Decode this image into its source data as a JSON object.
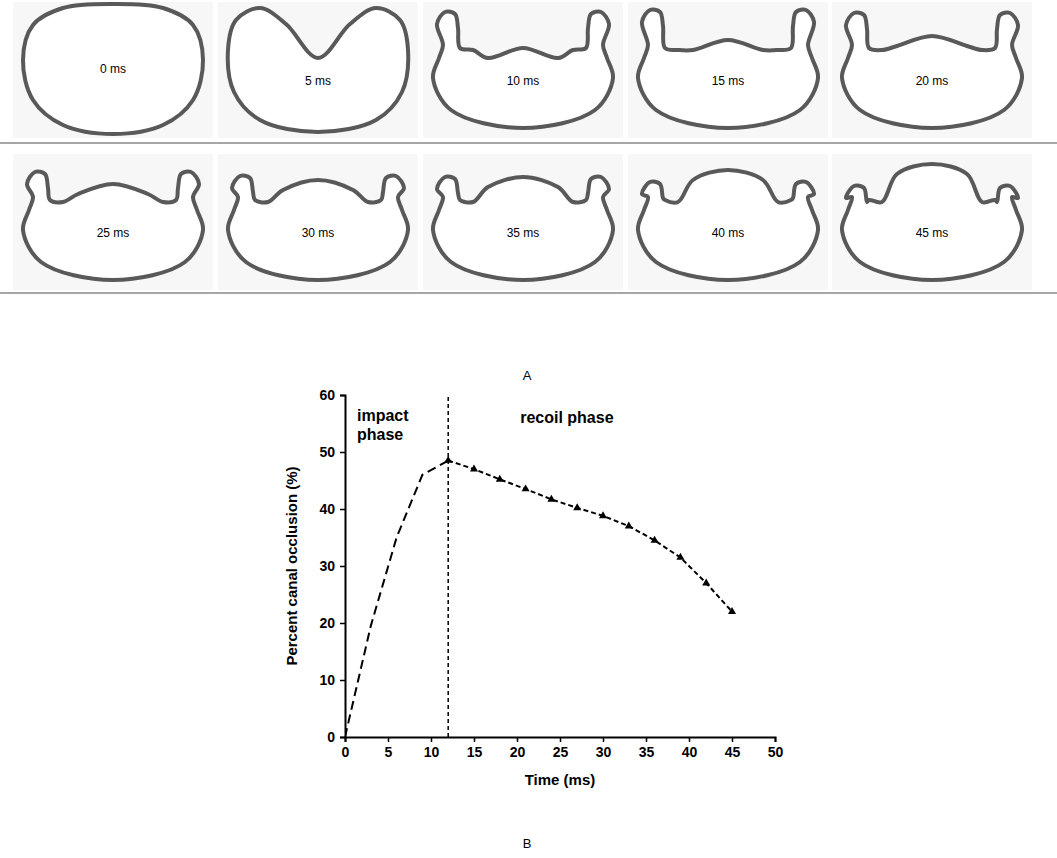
{
  "panel_a": {
    "label": "A",
    "frames": [
      "0 ms",
      "5 ms",
      "10 ms",
      "15 ms",
      "20 ms",
      "25 ms",
      "30 ms",
      "35 ms",
      "40 ms",
      "45 ms"
    ]
  },
  "chart_data": {
    "type": "line",
    "panel_label": "B",
    "x_label": "Time (ms)",
    "y_label": "Percent canal occlusion (%)",
    "xlim": [
      0,
      50
    ],
    "xticks": [
      0,
      5,
      10,
      15,
      20,
      25,
      30,
      35,
      40,
      45,
      50
    ],
    "ylim": [
      0,
      60
    ],
    "yticks": [
      0,
      10,
      20,
      30,
      40,
      50,
      60
    ],
    "grid": false,
    "phase_boundary": 12,
    "annotations": [
      {
        "text": "impact phase"
      },
      {
        "text": "recoil phase"
      }
    ],
    "series": [
      {
        "x": [
          0,
          3,
          6,
          9,
          12
        ],
        "values": [
          0,
          19.5,
          35,
          46,
          48.5
        ],
        "color": "#000000",
        "line_style": "long_dash",
        "marker": "none"
      },
      {
        "x": [
          12,
          15,
          18,
          21,
          24,
          27,
          30,
          33,
          36,
          39,
          42,
          45
        ],
        "values": [
          48.5,
          47,
          45.2,
          43.5,
          41.7,
          40.2,
          38.8,
          37,
          34.5,
          31.5,
          27,
          22
        ],
        "color": "#000000",
        "line_style": "short_dash",
        "marker": "triangle"
      }
    ]
  }
}
